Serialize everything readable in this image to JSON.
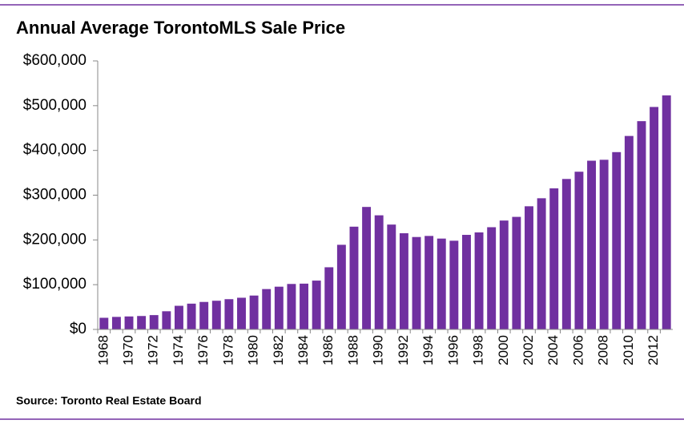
{
  "chart_data": {
    "type": "bar",
    "title": "Annual Average TorontoMLS Sale Price",
    "source": "Source: Toronto Real Estate Board",
    "categories": [
      "1968",
      null,
      "1970",
      null,
      "1972",
      null,
      "1974",
      null,
      "1976",
      null,
      "1978",
      null,
      "1980",
      null,
      "1982",
      null,
      "1984",
      null,
      "1986",
      null,
      "1988",
      null,
      "1990",
      null,
      "1992",
      null,
      "1994",
      null,
      "1996",
      null,
      "1998",
      null,
      "2000",
      null,
      "2002",
      null,
      "2004",
      null,
      "2006",
      null,
      "2008",
      null,
      "2010",
      null,
      "2012",
      null
    ],
    "values": [
      26000,
      28000,
      29000,
      30000,
      32000,
      40600,
      52800,
      57600,
      61400,
      64100,
      67600,
      70800,
      75700,
      90200,
      95500,
      101600,
      102300,
      109100,
      138900,
      189100,
      229600,
      273700,
      255000,
      234300,
      214900,
      206500,
      208900,
      203000,
      198200,
      211300,
      216800,
      228400,
      243300,
      251500,
      275200,
      293100,
      315200,
      336200,
      352400,
      377000,
      379100,
      396200,
      432300,
      465400,
      497100,
      522900
    ],
    "color": "#7030a0",
    "ylim": [
      0,
      600000
    ],
    "yticks": [
      {
        "value": 0,
        "label": "$0"
      },
      {
        "value": 100000,
        "label": "$100,000"
      },
      {
        "value": 200000,
        "label": "$200,000"
      },
      {
        "value": 300000,
        "label": "$300,000"
      },
      {
        "value": 400000,
        "label": "$400,000"
      },
      {
        "value": 500000,
        "label": "$500,000"
      },
      {
        "value": 600000,
        "label": "$600,000"
      }
    ],
    "grid": false
  }
}
